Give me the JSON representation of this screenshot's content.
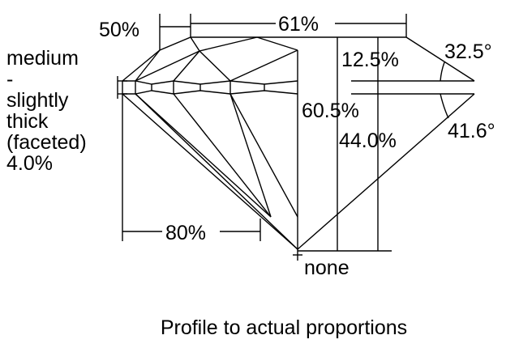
{
  "girdle_label": [
    "medium",
    "-",
    "slightly",
    "thick",
    "(faceted)",
    "4.0%"
  ],
  "dimensions": {
    "star_length": "50%",
    "table": "61%",
    "crown_height": "12.5%",
    "crown_angle": "32.5°",
    "total_depth": "60.5%",
    "pavilion_depth": "44.0%",
    "pavilion_angle": "41.6°",
    "lower_half_length": "80%",
    "culet": "none"
  },
  "caption": "Profile to actual proportions"
}
